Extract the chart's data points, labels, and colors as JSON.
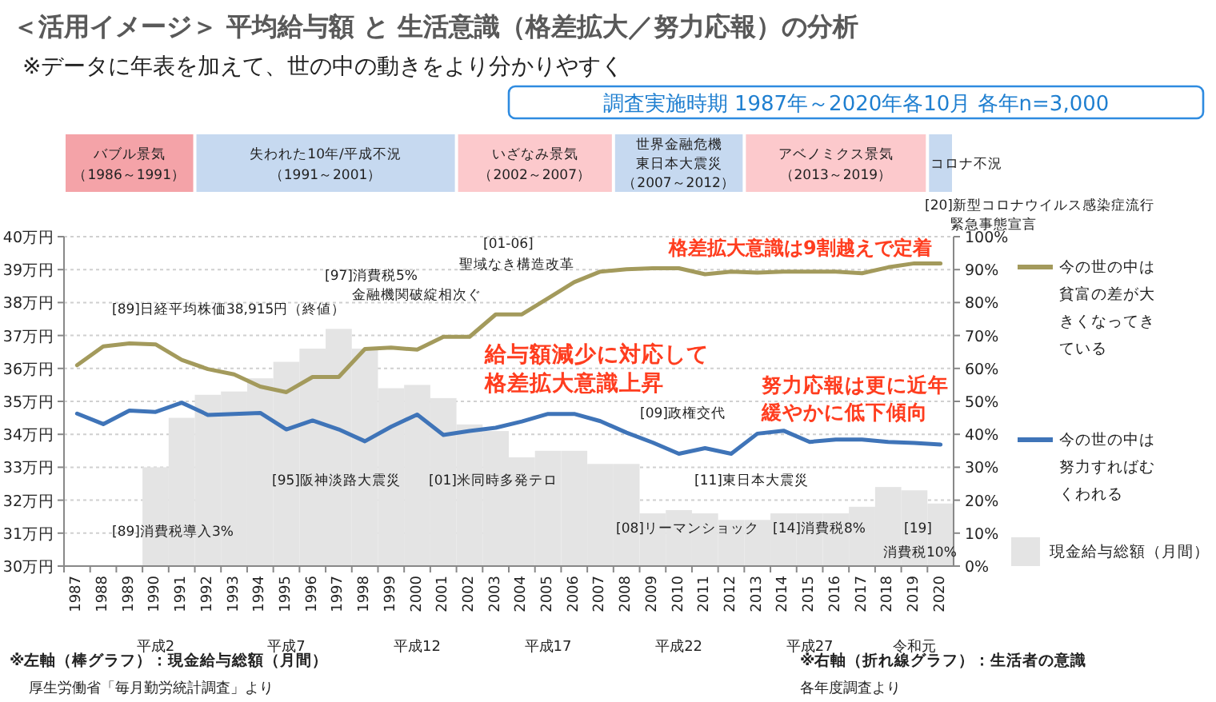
{
  "chart_data": {
    "type": "bar",
    "title": "＜活用イメージ＞ 平均給与額 と 生活意識（格差拡大／努力応報）の分析",
    "subtitle": "※データに年表を加えて、世の中の動きをより分かりやすく",
    "categories": [
      "1987",
      "1988",
      "1989",
      "1990",
      "1991",
      "1992",
      "1993",
      "1994",
      "1995",
      "1996",
      "1997",
      "1998",
      "1999",
      "2000",
      "2001",
      "2002",
      "2003",
      "2004",
      "2005",
      "2006",
      "2007",
      "2008",
      "2009",
      "2010",
      "2011",
      "2012",
      "2013",
      "2014",
      "2015",
      "2016",
      "2017",
      "2018",
      "2019",
      "2020"
    ],
    "series": [
      {
        "name": "現金給与総額（月間）",
        "color": "#e4e4e4",
        "values": [
          null,
          null,
          null,
          33.0,
          34.5,
          35.2,
          35.3,
          35.7,
          36.2,
          36.6,
          37.2,
          36.6,
          35.4,
          35.5,
          35.1,
          34.3,
          34.1,
          33.3,
          33.5,
          33.5,
          33.1,
          33.1,
          31.6,
          31.7,
          31.6,
          31.4,
          31.4,
          31.6,
          31.6,
          31.6,
          31.8,
          32.4,
          32.3,
          31.9
        ]
      },
      {
        "name": "今の世の中は貧富の差が大きくなってきている",
        "type": "line",
        "axis": "y2",
        "color": "#a39a5c",
        "values": [
          61,
          66.7,
          67.6,
          67.3,
          62.6,
          59.8,
          58.2,
          54.5,
          52.8,
          57.4,
          57.4,
          65.9,
          66.3,
          65.7,
          69.6,
          69.6,
          76.4,
          76.4,
          81.3,
          86.2,
          89.4,
          90.1,
          90.4,
          90.4,
          88.6,
          89.4,
          89.1,
          89.4,
          89.4,
          89.4,
          88.9,
          90.7,
          91.9,
          91.9
        ]
      },
      {
        "name": "今の世の中は努力すればむくわれる",
        "type": "line",
        "axis": "y2",
        "color": "#3f74b8",
        "values": [
          46.3,
          43.1,
          47.2,
          46.8,
          49.6,
          45.9,
          46.2,
          46.5,
          41.5,
          44.2,
          41.5,
          37.9,
          42.3,
          46.0,
          39.8,
          41.0,
          42.0,
          43.9,
          46.2,
          46.2,
          44.0,
          40.5,
          37.5,
          34.1,
          35.8,
          34.1,
          40.2,
          41.1,
          37.7,
          38.4,
          38.4,
          37.7,
          37.4,
          36.9
        ]
      }
    ],
    "ylim": [
      30,
      40
    ],
    "yticks": [
      {
        "value": 30,
        "label": "30万円"
      },
      {
        "value": 31,
        "label": "31万円"
      },
      {
        "value": 32,
        "label": "32万円"
      },
      {
        "value": 33,
        "label": "33万円"
      },
      {
        "value": 34,
        "label": "34万円"
      },
      {
        "value": 35,
        "label": "35万円"
      },
      {
        "value": 36,
        "label": "36万円"
      },
      {
        "value": 37,
        "label": "37万円"
      },
      {
        "value": 38,
        "label": "38万円"
      },
      {
        "value": 39,
        "label": "39万円"
      },
      {
        "value": 40,
        "label": "40万円"
      }
    ],
    "y2lim": [
      0,
      100
    ],
    "y2ticks": [
      {
        "value": 0,
        "label": "0%"
      },
      {
        "value": 10,
        "label": "10%"
      },
      {
        "value": 20,
        "label": "20%"
      },
      {
        "value": 30,
        "label": "30%"
      },
      {
        "value": 40,
        "label": "40%"
      },
      {
        "value": 50,
        "label": "50%"
      },
      {
        "value": 60,
        "label": "60%"
      },
      {
        "value": 70,
        "label": "70%"
      },
      {
        "value": 80,
        "label": "80%"
      },
      {
        "value": 90,
        "label": "90%"
      },
      {
        "value": 100,
        "label": "100%"
      }
    ],
    "grid": "y",
    "legend": "right",
    "annotations": [
      "調査実施時期  1987年～2020年各10月  各年n=3,000",
      "[20]新型コロナウイルス感染症流行",
      "緊急事態宣言",
      "※左軸（棒グラフ）：現金給与総額（月間）",
      "厚生労働省「毎月勤労統計調査」より",
      "※右軸（折れ線グラフ）：生活者の意識",
      "各年度調査より",
      "平成2",
      "平成7",
      "平成12",
      "平成17",
      "平成22",
      "平成27",
      "令和元",
      "バブル景気",
      "（1986～1991）",
      "失われた10年/平成不況",
      "（1991～2001）",
      "いざなみ景気",
      "（2002～2007）",
      "世界金融危機",
      "東日本大震災",
      "（2007～2012）",
      "アベノミクス景気",
      "（2013～2019）",
      "コロナ不況",
      "[89]日経平均株価38,915円（終値）",
      "[97]消費税5%",
      "金融機関破綻相次ぐ",
      "[01-06]",
      "聖域なき構造改革",
      "[95]阪神淡路大震災",
      "[01]米同時多発テロ",
      "[89]消費税導入3%",
      "[09]政権交代",
      "[11]東日本大震災",
      "[08]リーマンショック",
      "[14]消費税8%",
      "[19]",
      "消費税10%",
      "格差拡大意識は9割越えで定着",
      "給与額減少に対応して",
      "格差拡大意識上昇",
      "努力応報は更に近年",
      "緩やかに低下傾向"
    ]
  }
}
